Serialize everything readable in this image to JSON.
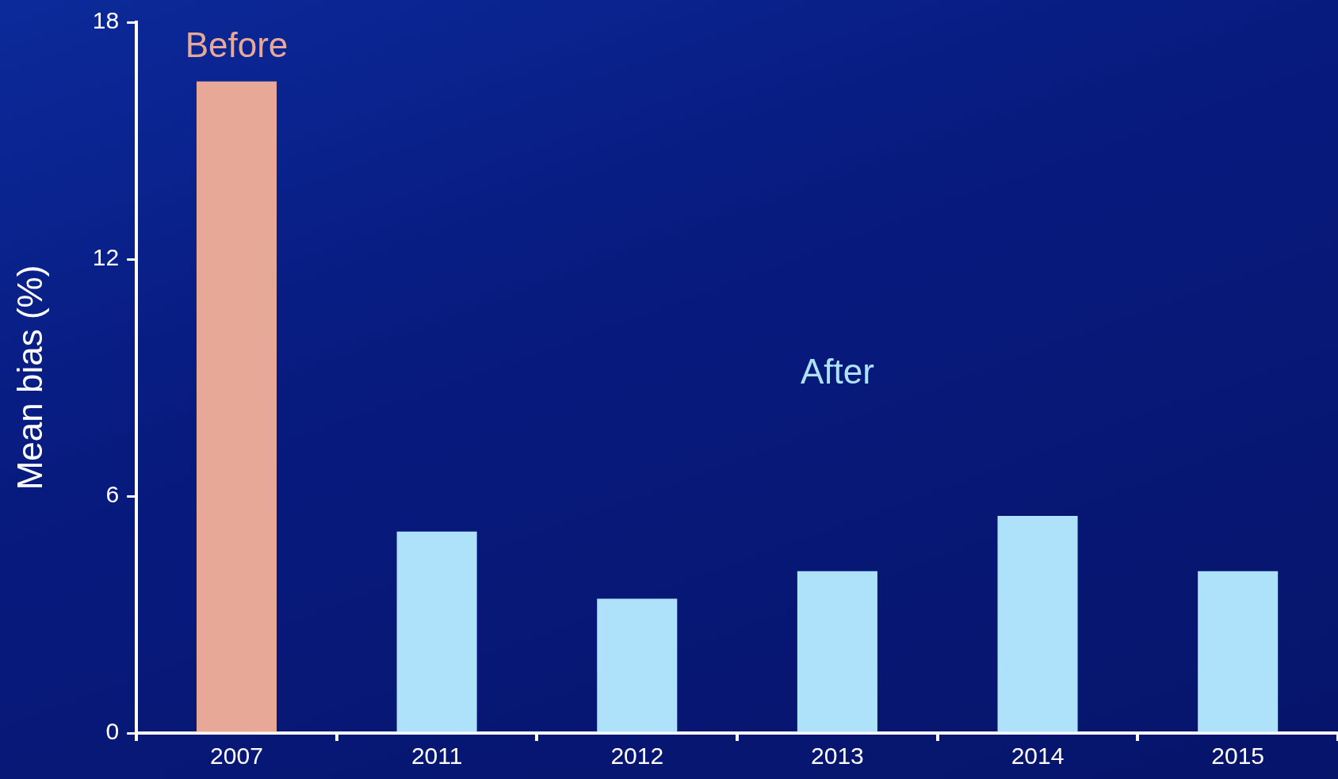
{
  "chart_data": {
    "type": "bar",
    "ylabel": "Mean bias (%)",
    "categories": [
      "2007",
      "2011",
      "2012",
      "2013",
      "2014",
      "2015"
    ],
    "values": [
      16.5,
      5.1,
      3.4,
      4.1,
      5.5,
      4.1
    ],
    "colors": [
      "#e8a898",
      "#aee2fb",
      "#aee2fb",
      "#aee2fb",
      "#aee2fb",
      "#aee2fb"
    ],
    "ylim": [
      0,
      18
    ],
    "yticks": [
      0,
      6,
      12,
      18
    ],
    "grid": false,
    "legend": false,
    "annotations": [
      "Before",
      "After"
    ]
  }
}
